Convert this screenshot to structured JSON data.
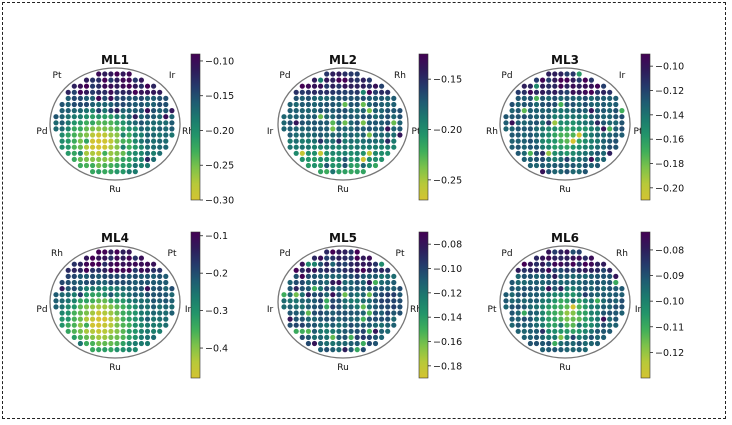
{
  "colors": {
    "colormap": [
      "#440154",
      "#2f1b5a",
      "#253a6b",
      "#1f5c72",
      "#1b7a6e",
      "#22946a",
      "#3fae5a",
      "#7dc24a",
      "#b7c93a",
      "#d4c331"
    ],
    "dot_base_dark": "#1f2d5e",
    "circle_stroke": "#777777"
  },
  "chart_data": [
    {
      "type": "heatmap",
      "title": "ML1",
      "labels": {
        "top_left": "Pt",
        "top_right": "Ir",
        "left": "Pd",
        "right": "Rh",
        "bottom": "Ru"
      },
      "colorbar": {
        "min": -0.3,
        "max": -0.09,
        "ticks": [
          "−0.10",
          "−0.15",
          "−0.20",
          "−0.25",
          "−0.30"
        ],
        "tick_values": [
          -0.1,
          -0.15,
          -0.2,
          -0.25,
          -0.3
        ]
      },
      "hotspot": {
        "direction": "left-bottom",
        "strength": 0.9
      }
    },
    {
      "type": "heatmap",
      "title": "ML2",
      "labels": {
        "top_left": "Pd",
        "top_right": "Rh",
        "left": "Ir",
        "right": "Pt",
        "bottom": "Ru"
      },
      "colorbar": {
        "min": -0.27,
        "max": -0.125,
        "ticks": [
          "−0.15",
          "−0.20",
          "−0.25"
        ],
        "tick_values": [
          -0.15,
          -0.2,
          -0.25
        ]
      },
      "hotspot": {
        "direction": "bottom",
        "strength": 0.6
      }
    },
    {
      "type": "heatmap",
      "title": "ML3",
      "labels": {
        "top_left": "Pd",
        "top_right": "Ir",
        "left": "Rh",
        "right": "Pt",
        "bottom": "Ru"
      },
      "colorbar": {
        "min": -0.21,
        "max": -0.09,
        "ticks": [
          "−0.10",
          "−0.12",
          "−0.14",
          "−0.16",
          "−0.18",
          "−0.20"
        ],
        "tick_values": [
          -0.1,
          -0.12,
          -0.14,
          -0.16,
          -0.18,
          -0.2
        ]
      },
      "hotspot": {
        "direction": "center-bottom",
        "strength": 0.6
      }
    },
    {
      "type": "heatmap",
      "title": "ML4",
      "labels": {
        "top_left": "Rh",
        "top_right": "Pt",
        "left": "Pd",
        "right": "Ir",
        "bottom": "Ru"
      },
      "colorbar": {
        "min": -0.48,
        "max": -0.09,
        "ticks": [
          "−0.1",
          "−0.2",
          "−0.3",
          "−0.4"
        ],
        "tick_values": [
          -0.1,
          -0.2,
          -0.3,
          -0.4
        ]
      },
      "hotspot": {
        "direction": "left-bottom",
        "strength": 0.9
      }
    },
    {
      "type": "heatmap",
      "title": "ML5",
      "labels": {
        "top_left": "Pd",
        "top_right": "Pt",
        "left": "Ir",
        "right": "Rh",
        "bottom": "Ru"
      },
      "colorbar": {
        "min": -0.19,
        "max": -0.07,
        "ticks": [
          "−0.08",
          "−0.10",
          "−0.12",
          "−0.14",
          "−0.16",
          "−0.18"
        ],
        "tick_values": [
          -0.08,
          -0.1,
          -0.12,
          -0.14,
          -0.16,
          -0.18
        ]
      },
      "hotspot": {
        "direction": "scattered",
        "strength": 0.5
      }
    },
    {
      "type": "heatmap",
      "title": "ML6",
      "labels": {
        "top_left": "Pd",
        "top_right": "Rh",
        "left": "Pt",
        "right": "Ir",
        "bottom": "Ru"
      },
      "colorbar": {
        "min": -0.13,
        "max": -0.073,
        "ticks": [
          "−0.08",
          "−0.09",
          "−0.10",
          "−0.11",
          "−0.12"
        ],
        "tick_values": [
          -0.08,
          -0.09,
          -0.1,
          -0.11,
          -0.12
        ]
      },
      "hotspot": {
        "direction": "center-bottom",
        "strength": 0.8
      }
    }
  ]
}
